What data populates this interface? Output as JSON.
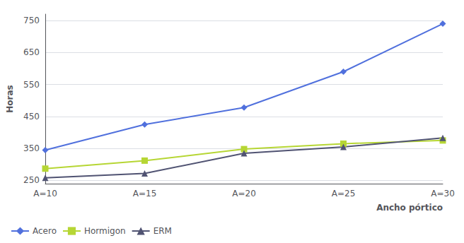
{
  "chart_data": {
    "type": "line",
    "xlabel": "Ancho pórtico",
    "ylabel": "Horas",
    "categories": [
      "A=10",
      "A=15",
      "A=20",
      "A=25",
      "A=30"
    ],
    "series": [
      {
        "name": "Acero",
        "marker": "diamond",
        "values": [
          345,
          425,
          478,
          590,
          740
        ]
      },
      {
        "name": "Hormigon",
        "marker": "square",
        "values": [
          287,
          312,
          348,
          365,
          375
        ]
      },
      {
        "name": "ERM",
        "marker": "triangle",
        "values": [
          258,
          272,
          335,
          355,
          383
        ]
      }
    ],
    "ylim": [
      240,
      770
    ],
    "yticks": [
      250,
      350,
      450,
      550,
      650,
      750
    ],
    "grid": true,
    "legend": "bottom-left"
  }
}
